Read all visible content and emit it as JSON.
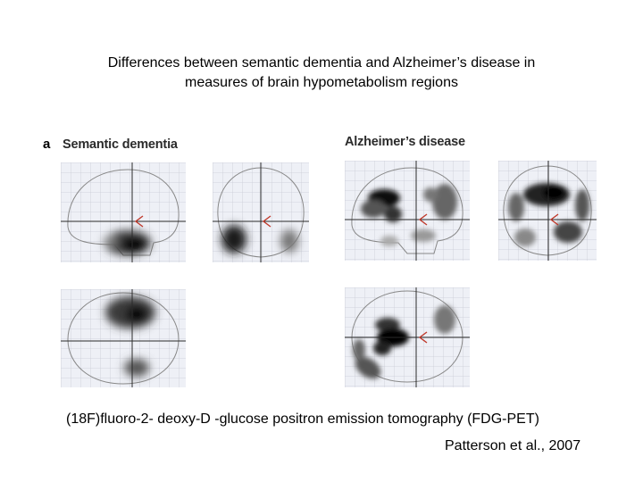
{
  "title": {
    "line1": "Differences between semantic dementia and Alzheimer’s disease in",
    "line2": "measures of brain hypometabolism regions"
  },
  "figure": {
    "panel_letter": "a",
    "semantic_dementia_label": "Semantic dementia",
    "alzheimers_label": "Alzheimer’s disease"
  },
  "caption": "(18F)fluoro‐2- deoxy‐D -glucose positron emission tomography (FDG-PET)",
  "citation": "Patterson et al., 2007",
  "colors": {
    "crosshair": "#2a2a2a",
    "marker": "#c0392b",
    "grid": "#c9ccd6",
    "scan_bg": "#eef0f6"
  }
}
